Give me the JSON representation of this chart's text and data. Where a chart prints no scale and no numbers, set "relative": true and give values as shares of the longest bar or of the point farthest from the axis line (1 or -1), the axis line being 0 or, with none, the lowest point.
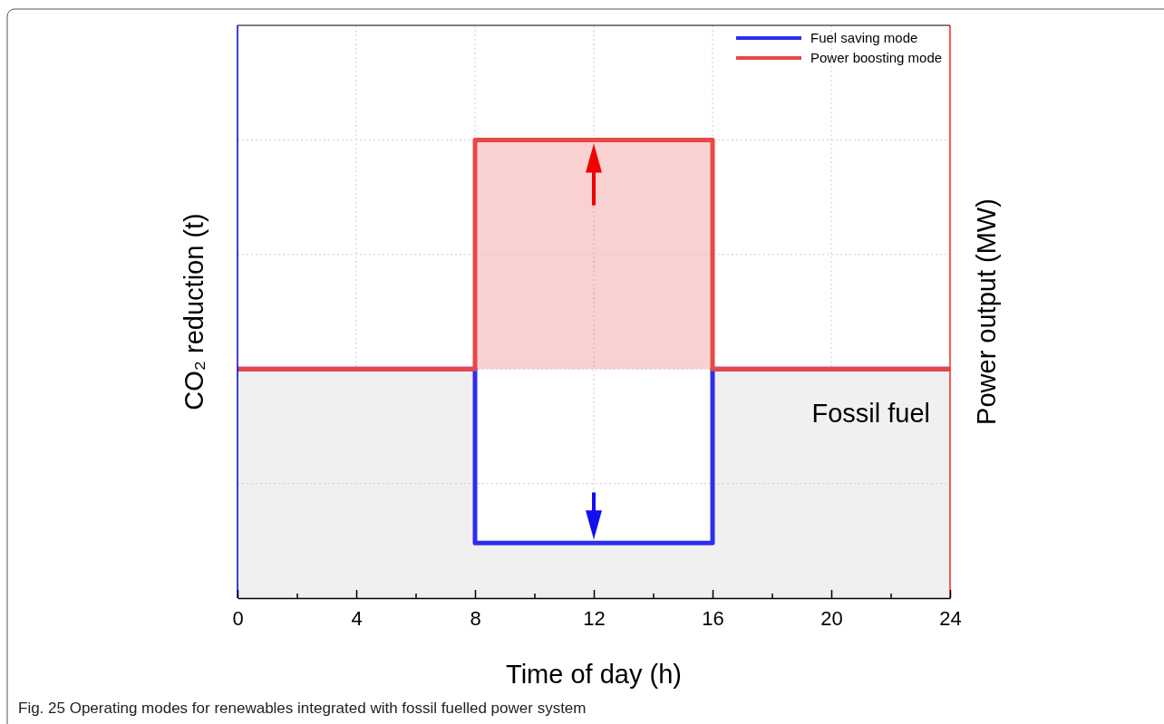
{
  "chart_data": {
    "type": "line",
    "relative": true,
    "xlabel": "Time of day (h)",
    "ylabel": "CO₂ reduction (t)",
    "y2label": "Power output (MW)",
    "xlim": [
      0,
      24
    ],
    "xticks": [
      0,
      {
        "value": 2,
        "label": null
      },
      4,
      {
        "value": 6,
        "label": null
      },
      8,
      {
        "value": 10,
        "label": null
      },
      12,
      {
        "value": 14,
        "label": null
      },
      16,
      {
        "value": 18,
        "label": null
      },
      20,
      {
        "value": 22,
        "label": null
      },
      24
    ],
    "grid": true,
    "legend": "top right",
    "x": [
      0,
      8,
      8,
      16,
      16,
      24
    ],
    "series": [
      {
        "name": "Fuel saving mode",
        "type": "area",
        "color": "#2e2ef0",
        "values": [
          0.5,
          0.5,
          0.12,
          0.12,
          0.5,
          0.5
        ]
      },
      {
        "name": "Power boosting mode",
        "color": "#e84848",
        "values": [
          0.5,
          0.5,
          1,
          1,
          0.5,
          0.5
        ],
        "lower": [
          0.5,
          0.5,
          0.5,
          0.5,
          0.5,
          0.5
        ],
        "upper": [
          0.5,
          0.5,
          1,
          1,
          0.5,
          0.5
        ]
      }
    ],
    "annotations": [
      "Fossil fuel",
      "Fig. 25 Operating modes for renewables integrated with fossil fuelled power system"
    ]
  }
}
